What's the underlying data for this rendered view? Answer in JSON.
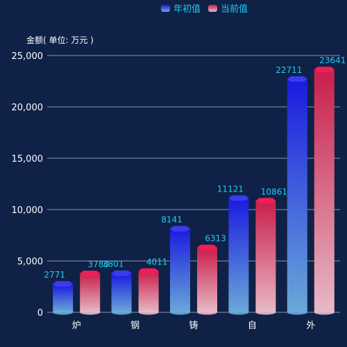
{
  "chart_data": {
    "type": "bar",
    "ylabel": "金额( 单位: 万元 )",
    "categories": [
      "炉",
      "钢",
      "铸",
      "自",
      "外"
    ],
    "series": [
      {
        "name": "年初值",
        "values": [
          2771,
          3801,
          8141,
          11121,
          22711
        ],
        "labels": [
          "2771",
          "3801",
          "8141",
          "11121",
          "22711"
        ],
        "color_top": "#1a1adf",
        "color_bottom": "#6aa8d8"
      },
      {
        "name": "当前值",
        "values": [
          3780,
          4011,
          6313,
          10861,
          23641
        ],
        "labels": [
          "3780",
          "4011",
          "6313",
          "10861",
          "23641"
        ],
        "color_top": "#c81e4a",
        "color_bottom": "#e7b9c6"
      }
    ],
    "ylim": [
      0,
      25000
    ],
    "yticks": [
      0,
      5000,
      10000,
      15000,
      20000,
      25000
    ],
    "ytick_labels": [
      "0",
      "5,000",
      "10,000",
      "15,000",
      "20,000",
      "25,000"
    ],
    "grid": true,
    "legend_position": "top-center"
  }
}
